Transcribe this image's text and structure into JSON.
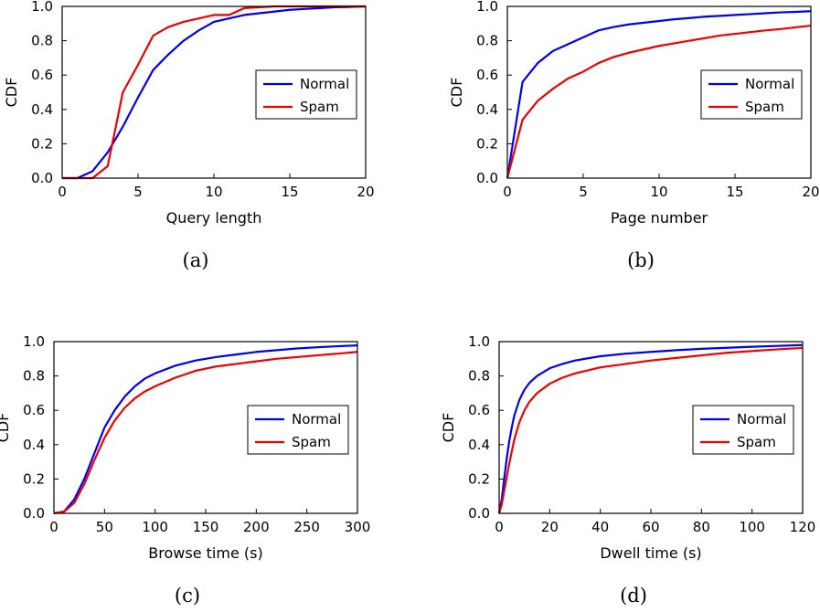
{
  "figure": {
    "panels": [
      {
        "caption": "(a)",
        "chart_data": {
          "type": "line",
          "title": "",
          "xlabel": "Query length",
          "ylabel": "CDF",
          "xlim": [
            0,
            20
          ],
          "ylim": [
            0,
            1.0
          ],
          "xticks": [
            0,
            5,
            10,
            15,
            20
          ],
          "yticks": [
            0.0,
            0.2,
            0.4,
            0.6,
            0.8,
            1.0
          ],
          "xtick_labels": [
            "0",
            "5",
            "10",
            "15",
            "20"
          ],
          "ytick_labels": [
            "0.0",
            "0.2",
            "0.4",
            "0.6",
            "0.8",
            "1.0"
          ],
          "grid": false,
          "legend": "center-right",
          "series": [
            {
              "name": "Normal",
              "color": "#0000ee",
              "x": [
                0,
                1,
                2,
                3,
                4,
                5,
                6,
                7,
                8,
                9,
                10,
                11,
                12,
                13,
                14,
                15,
                16,
                17,
                18,
                19,
                20
              ],
              "y": [
                0,
                0,
                0.04,
                0.15,
                0.3,
                0.47,
                0.63,
                0.72,
                0.8,
                0.86,
                0.91,
                0.93,
                0.95,
                0.96,
                0.97,
                0.98,
                0.985,
                0.99,
                0.995,
                0.997,
                1.0
              ]
            },
            {
              "name": "Spam",
              "color": "#ee0000",
              "x": [
                0,
                1,
                2,
                3,
                4,
                5,
                6,
                7,
                8,
                9,
                10,
                11,
                12,
                13,
                14,
                15,
                16,
                17,
                18,
                19,
                20
              ],
              "y": [
                0,
                0,
                0,
                0.07,
                0.5,
                0.66,
                0.83,
                0.88,
                0.91,
                0.93,
                0.95,
                0.95,
                0.99,
                0.995,
                1.0,
                1.0,
                1.0,
                1.0,
                1.0,
                1.0,
                1.0
              ]
            }
          ]
        }
      },
      {
        "caption": "(b)",
        "chart_data": {
          "type": "line",
          "title": "",
          "xlabel": "Page number",
          "ylabel": "CDF",
          "xlim": [
            0,
            20
          ],
          "ylim": [
            0,
            1.0
          ],
          "xticks": [
            0,
            5,
            10,
            15,
            20
          ],
          "yticks": [
            0.0,
            0.2,
            0.4,
            0.6,
            0.8,
            1.0
          ],
          "xtick_labels": [
            "0",
            "5",
            "10",
            "15",
            "20"
          ],
          "ytick_labels": [
            "0.0",
            "0.2",
            "0.4",
            "0.6",
            "0.8",
            "1.0"
          ],
          "grid": false,
          "legend": "center-right",
          "series": [
            {
              "name": "Normal",
              "color": "#0000ee",
              "x": [
                0,
                1,
                2,
                3,
                4,
                5,
                6,
                7,
                8,
                9,
                10,
                11,
                12,
                13,
                14,
                15,
                16,
                17,
                18,
                19,
                20
              ],
              "y": [
                0,
                0.56,
                0.67,
                0.74,
                0.78,
                0.82,
                0.86,
                0.88,
                0.895,
                0.905,
                0.915,
                0.925,
                0.932,
                0.94,
                0.945,
                0.95,
                0.955,
                0.96,
                0.965,
                0.968,
                0.972
              ]
            },
            {
              "name": "Spam",
              "color": "#ee0000",
              "x": [
                0,
                1,
                2,
                3,
                4,
                5,
                6,
                7,
                8,
                9,
                10,
                11,
                12,
                13,
                14,
                15,
                16,
                17,
                18,
                19,
                20
              ],
              "y": [
                0,
                0.34,
                0.45,
                0.52,
                0.58,
                0.62,
                0.67,
                0.705,
                0.73,
                0.75,
                0.77,
                0.785,
                0.8,
                0.815,
                0.83,
                0.84,
                0.85,
                0.86,
                0.868,
                0.878,
                0.888
              ]
            }
          ]
        }
      },
      {
        "caption": "(c)",
        "chart_data": {
          "type": "line",
          "title": "",
          "xlabel": "Browse time (s)",
          "ylabel": "CDF",
          "xlim": [
            0,
            300
          ],
          "ylim": [
            0,
            1.0
          ],
          "xticks": [
            0,
            50,
            100,
            150,
            200,
            250,
            300
          ],
          "yticks": [
            0.0,
            0.2,
            0.4,
            0.6,
            0.8,
            1.0
          ],
          "xtick_labels": [
            "0",
            "50",
            "100",
            "150",
            "200",
            "250",
            "300"
          ],
          "ytick_labels": [
            "0.0",
            "0.2",
            "0.4",
            "0.6",
            "0.8",
            "1.0"
          ],
          "grid": false,
          "legend": "center-right",
          "series": [
            {
              "name": "Normal",
              "color": "#0000ee",
              "x": [
                0,
                10,
                20,
                30,
                40,
                50,
                60,
                70,
                80,
                90,
                100,
                120,
                140,
                160,
                180,
                200,
                220,
                240,
                260,
                280,
                300
              ],
              "y": [
                0,
                0.01,
                0.08,
                0.2,
                0.35,
                0.5,
                0.6,
                0.68,
                0.74,
                0.785,
                0.815,
                0.86,
                0.89,
                0.91,
                0.925,
                0.94,
                0.95,
                0.96,
                0.967,
                0.973,
                0.978
              ]
            },
            {
              "name": "Spam",
              "color": "#ee0000",
              "x": [
                0,
                10,
                20,
                30,
                40,
                50,
                60,
                70,
                80,
                90,
                100,
                120,
                140,
                160,
                180,
                200,
                220,
                240,
                260,
                280,
                300
              ],
              "y": [
                0,
                0.01,
                0.06,
                0.17,
                0.31,
                0.44,
                0.54,
                0.615,
                0.67,
                0.71,
                0.74,
                0.79,
                0.83,
                0.855,
                0.87,
                0.885,
                0.9,
                0.91,
                0.92,
                0.93,
                0.94
              ]
            }
          ]
        }
      },
      {
        "caption": "(d)",
        "chart_data": {
          "type": "line",
          "title": "",
          "xlabel": "Dwell time (s)",
          "ylabel": "CDF",
          "xlim": [
            0,
            120
          ],
          "ylim": [
            0,
            1.0
          ],
          "xticks": [
            0,
            20,
            40,
            60,
            80,
            100,
            120
          ],
          "yticks": [
            0.0,
            0.2,
            0.4,
            0.6,
            0.8,
            1.0
          ],
          "xtick_labels": [
            "0",
            "20",
            "40",
            "60",
            "80",
            "100",
            "120"
          ],
          "ytick_labels": [
            "0.0",
            "0.2",
            "0.4",
            "0.6",
            "0.8",
            "1.0"
          ],
          "grid": false,
          "legend": "center-right",
          "series": [
            {
              "name": "Normal",
              "color": "#0000ee",
              "x": [
                0,
                1,
                2,
                3,
                4,
                5,
                6,
                8,
                10,
                12,
                15,
                20,
                25,
                30,
                40,
                50,
                60,
                70,
                80,
                90,
                100,
                110,
                120
              ],
              "y": [
                0,
                0.08,
                0.2,
                0.32,
                0.42,
                0.5,
                0.57,
                0.66,
                0.72,
                0.76,
                0.8,
                0.845,
                0.87,
                0.89,
                0.915,
                0.93,
                0.94,
                0.95,
                0.958,
                0.964,
                0.97,
                0.975,
                0.98
              ]
            },
            {
              "name": "Spam",
              "color": "#ee0000",
              "x": [
                0,
                1,
                2,
                3,
                4,
                5,
                6,
                8,
                10,
                12,
                15,
                20,
                25,
                30,
                40,
                50,
                60,
                70,
                80,
                90,
                100,
                110,
                120
              ],
              "y": [
                0,
                0.05,
                0.13,
                0.21,
                0.29,
                0.36,
                0.43,
                0.53,
                0.6,
                0.65,
                0.7,
                0.755,
                0.79,
                0.815,
                0.85,
                0.87,
                0.89,
                0.905,
                0.92,
                0.935,
                0.945,
                0.955,
                0.963
              ]
            }
          ]
        }
      }
    ]
  }
}
